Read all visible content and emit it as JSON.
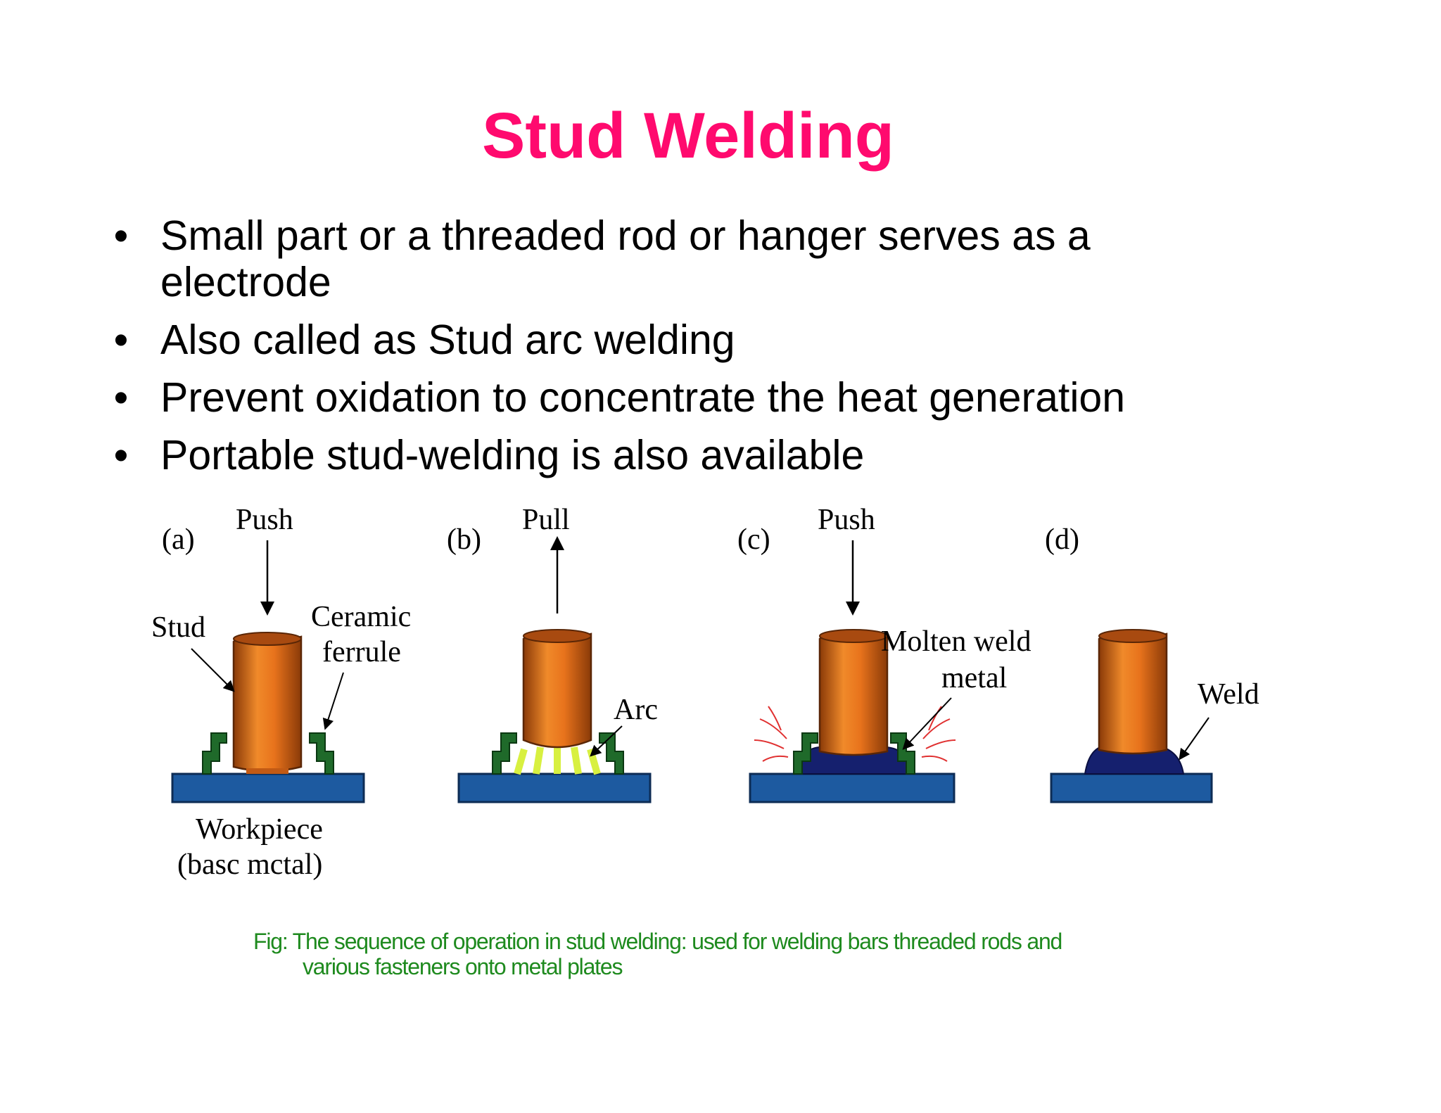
{
  "slide": {
    "title": "Stud Welding",
    "bullets": [
      "Small part or a threaded rod or hanger serves as a electrode",
      "Also called as Stud arc welding",
      "Prevent oxidation to concentrate the heat generation",
      "Portable stud-welding is also available"
    ],
    "bullet_symbol": "•"
  },
  "figure": {
    "panels": [
      {
        "letter": "(a)",
        "action": "Push"
      },
      {
        "letter": "(b)",
        "action": "Pull"
      },
      {
        "letter": "(c)",
        "action": "Push"
      },
      {
        "letter": "(d)",
        "action": ""
      }
    ],
    "labels": {
      "stud": "Stud",
      "ceramic_1": "Ceramic",
      "ceramic_2": "ferrule",
      "workpiece_1": "Workpiece",
      "workpiece_2": "(basc   mctal)",
      "arc": "Arc",
      "molten_1": "Molten   weld",
      "molten_2": "metal",
      "weld": "Weld"
    },
    "colors": {
      "stud": "#e8731c",
      "stud_dark": "#a84a10",
      "ferrule": "#1f6a2a",
      "workpiece": "#1d5aa0",
      "weld_pool": "#15206e",
      "arc": "#d8f040",
      "sparks": "#e03030"
    }
  },
  "caption": {
    "line1": "Fig: The sequence of operation in stud welding: used for welding bars threaded rods and",
    "line2": "various fasteners onto metal plates"
  }
}
